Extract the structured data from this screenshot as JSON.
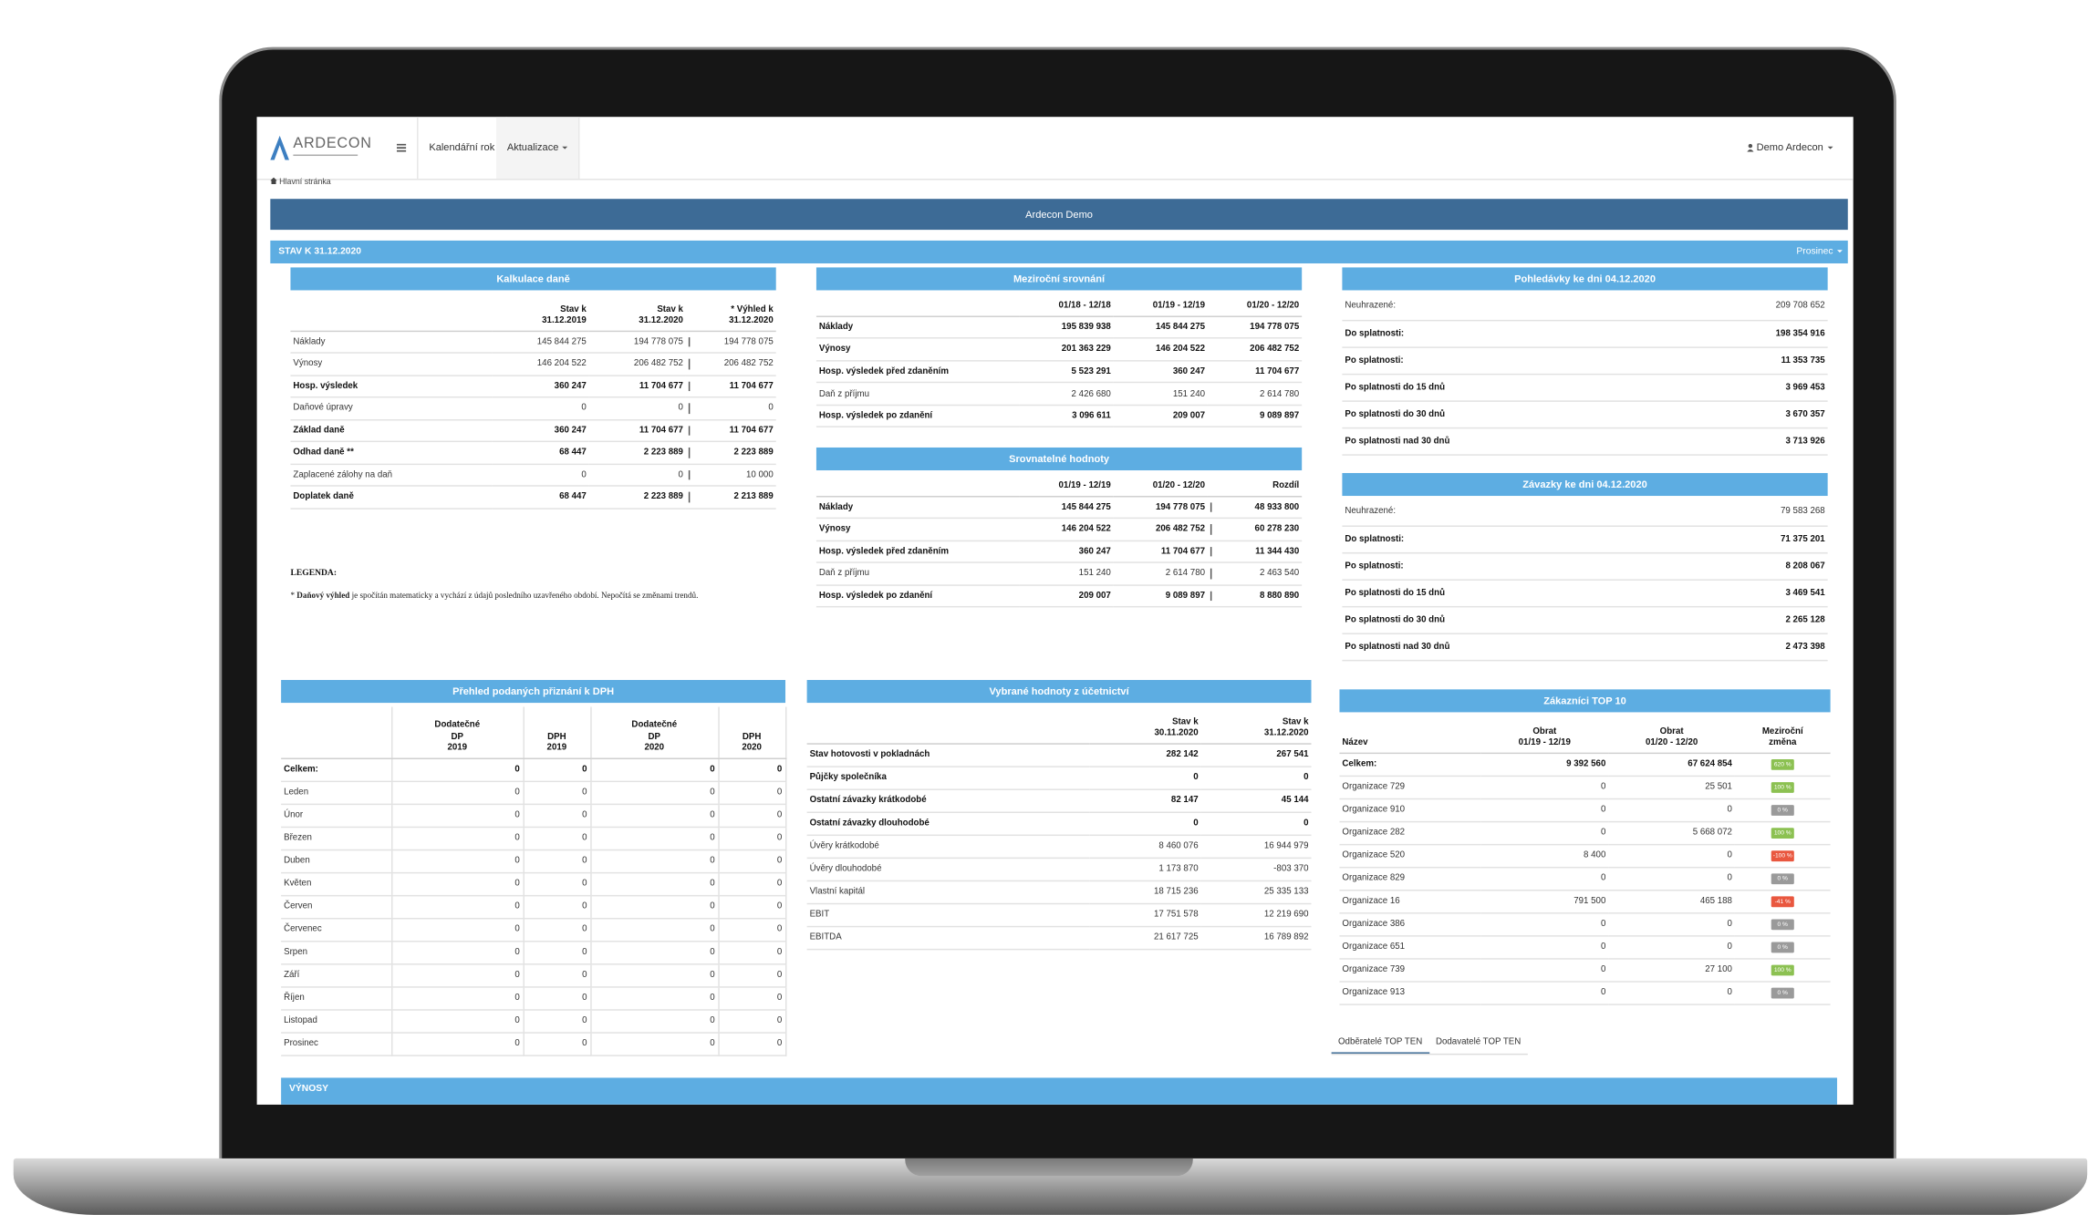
{
  "navbar": {
    "logo": "ARDECON",
    "items": [
      "Kalendářní rok",
      "Aktualizace"
    ],
    "user": "Demo Ardecon"
  },
  "breadcrumb": "Hlavní stránka",
  "banner": "Ardecon Demo",
  "section": {
    "title": "STAV K 31.12.2020",
    "month": "Prosinec"
  },
  "panels": {
    "kalkulace": {
      "title": "Kalkulace daně",
      "divider": true,
      "columns": [
        [],
        [
          "Stav k",
          "31.12.2019"
        ],
        [
          "Stav k",
          "31.12.2020"
        ],
        [
          "* Výhled k",
          "31.12.2020"
        ]
      ],
      "rows": [
        {
          "label": "Náklady",
          "values": [
            "145 844 275",
            "194 778 075",
            "194 778 075"
          ]
        },
        {
          "label": "Výnosy",
          "values": [
            "146 204 522",
            "206 482 752",
            "206 482 752"
          ]
        },
        {
          "label": "Hosp. výsledek",
          "values": [
            "360 247",
            "11 704 677",
            "11 704 677"
          ],
          "bold": true
        },
        {
          "label": "Daňové úpravy",
          "values": [
            "0",
            "0",
            "0"
          ],
          "sep": true
        },
        {
          "label": "Základ daně",
          "values": [
            "360 247",
            "11 704 677",
            "11 704 677"
          ],
          "bold": true,
          "sep": true
        },
        {
          "label": "Odhad daně **",
          "values": [
            "68 447",
            "2 223 889",
            "2 223 889"
          ],
          "bold": true,
          "sep": true
        },
        {
          "label": "Zaplacené zálohy na daň",
          "values": [
            "0",
            "0",
            "10 000"
          ],
          "sep": true
        },
        {
          "label": "Doplatek daně",
          "values": [
            "68 447",
            "2 223 889",
            "2 213 889"
          ],
          "bold": true
        }
      ]
    },
    "mezirocni": {
      "title": "Meziroční srovnání",
      "columns": [
        [],
        [
          "01/18 - 12/18"
        ],
        [
          "01/19 - 12/19"
        ],
        [
          "01/20 - 12/20"
        ]
      ],
      "rows": [
        {
          "label": "Náklady",
          "values": [
            "195 839 938",
            "145 844 275",
            "194 778 075"
          ],
          "bold": true
        },
        {
          "label": "Výnosy",
          "values": [
            "201 363 229",
            "146 204 522",
            "206 482 752"
          ],
          "bold": true
        },
        {
          "label": "Hosp. výsledek před zdaněním",
          "values": [
            "5 523 291",
            "360 247",
            "11 704 677"
          ],
          "bold": true
        },
        {
          "label": "Daň z příjmu",
          "values": [
            "2 426 680",
            "151 240",
            "2 614 780"
          ]
        },
        {
          "label": "Hosp. výsledek po zdanění",
          "values": [
            "3 096 611",
            "209 007",
            "9 089 897"
          ],
          "bold": true
        }
      ]
    },
    "srovnatelne": {
      "title": "Srovnatelné hodnoty",
      "divider": true,
      "columns": [
        [],
        [
          "01/19 - 12/19"
        ],
        [
          "01/20 - 12/20"
        ],
        [
          "Rozdíl"
        ]
      ],
      "rows": [
        {
          "label": "Náklady",
          "values": [
            "145 844 275",
            "194 778 075",
            "48 933 800"
          ],
          "bold": true
        },
        {
          "label": "Výnosy",
          "values": [
            "146 204 522",
            "206 482 752",
            "60 278 230"
          ],
          "bold": true
        },
        {
          "label": "Hosp. výsledek před zdaněním",
          "values": [
            "360 247",
            "11 704 677",
            "11 344 430"
          ],
          "bold": true
        },
        {
          "label": "Daň z příjmu",
          "values": [
            "151 240",
            "2 614 780",
            "2 463 540"
          ]
        },
        {
          "label": "Hosp. výsledek po zdanění",
          "values": [
            "209 007",
            "9 089 897",
            "8 880 890"
          ],
          "bold": true
        }
      ]
    },
    "pohledavky": {
      "title": "Pohledávky ke dni 04.12.2020",
      "rows": [
        {
          "label": "Neuhrazené:",
          "values": [
            "209 708 652"
          ]
        },
        {
          "label": "Do splatnosti:",
          "values": [
            "198 354 916"
          ],
          "bold": true
        },
        {
          "label": "Po splatnosti:",
          "values": [
            "11 353 735"
          ],
          "bold": true
        },
        {
          "label": "Po splatnosti do 15 dnů",
          "values": [
            "3 969 453"
          ],
          "bold": true
        },
        {
          "label": "Po splatnosti do 30 dnů",
          "values": [
            "3 670 357"
          ],
          "bold": true
        },
        {
          "label": "Po splatnosti nad 30 dnů",
          "values": [
            "3 713 926"
          ],
          "bold": true
        }
      ]
    },
    "zavazky": {
      "title": "Závazky ke dni 04.12.2020",
      "rows": [
        {
          "label": "Neuhrazené:",
          "values": [
            "79 583 268"
          ]
        },
        {
          "label": "Do splatnosti:",
          "values": [
            "71 375 201"
          ],
          "bold": true
        },
        {
          "label": "Po splatnosti:",
          "values": [
            "8 208 067"
          ],
          "bold": true
        },
        {
          "label": "Po splatnosti do 15 dnů",
          "values": [
            "3 469 541"
          ],
          "bold": true
        },
        {
          "label": "Po splatnosti do 30 dnů",
          "values": [
            "2 265 128"
          ],
          "bold": true
        },
        {
          "label": "Po splatnosti nad 30 dnů",
          "values": [
            "2 473 398"
          ],
          "bold": true
        }
      ]
    },
    "dph": {
      "title": "Přehled podaných přiznání k DPH",
      "columns": [
        [],
        [
          "Dodatečné",
          "DP",
          "2019"
        ],
        [
          "DPH",
          "2019"
        ],
        [
          "Dodatečné",
          "DP",
          "2020"
        ],
        [
          "DPH",
          "2020"
        ]
      ],
      "rows": [
        {
          "label": "Celkem:",
          "values": [
            "0",
            "0",
            "0",
            "0"
          ],
          "bold": true
        },
        {
          "label": "Leden",
          "values": [
            "0",
            "0",
            "0",
            "0"
          ]
        },
        {
          "label": "Únor",
          "values": [
            "0",
            "0",
            "0",
            "0"
          ]
        },
        {
          "label": "Březen",
          "values": [
            "0",
            "0",
            "0",
            "0"
          ]
        },
        {
          "label": "Duben",
          "values": [
            "0",
            "0",
            "0",
            "0"
          ]
        },
        {
          "label": "Květen",
          "values": [
            "0",
            "0",
            "0",
            "0"
          ]
        },
        {
          "label": "Červen",
          "values": [
            "0",
            "0",
            "0",
            "0"
          ]
        },
        {
          "label": "Červenec",
          "values": [
            "0",
            "0",
            "0",
            "0"
          ]
        },
        {
          "label": "Srpen",
          "values": [
            "0",
            "0",
            "0",
            "0"
          ]
        },
        {
          "label": "Září",
          "values": [
            "0",
            "0",
            "0",
            "0"
          ]
        },
        {
          "label": "Říjen",
          "values": [
            "0",
            "0",
            "0",
            "0"
          ]
        },
        {
          "label": "Listopad",
          "values": [
            "0",
            "0",
            "0",
            "0"
          ]
        },
        {
          "label": "Prosinec",
          "values": [
            "0",
            "0",
            "0",
            "0"
          ]
        }
      ]
    },
    "ucetnictvi": {
      "title": "Vybrané hodnoty z účetnictví",
      "columns": [
        [],
        [
          "Stav k",
          "30.11.2020"
        ],
        [
          "Stav k",
          "31.12.2020"
        ]
      ],
      "rows": [
        {
          "label": "Stav hotovosti v pokladnách",
          "values": [
            "282 142",
            "267 541"
          ],
          "bold": true
        },
        {
          "label": "Půjčky společníka",
          "values": [
            "0",
            "0"
          ],
          "bold": true
        },
        {
          "label": "Ostatní závazky krátkodobé",
          "values": [
            "82 147",
            "45 144"
          ],
          "bold": true
        },
        {
          "label": "Ostatní závazky dlouhodobé",
          "values": [
            "0",
            "0"
          ],
          "bold": true
        },
        {
          "label": "Úvěry krátkodobé",
          "values": [
            "8 460 076",
            "16 944 979"
          ]
        },
        {
          "label": "Úvěry dlouhodobé",
          "values": [
            "1 173 870",
            "-803 370"
          ]
        },
        {
          "label": "Vlastní kapitál",
          "values": [
            "18 715 236",
            "25 335 133"
          ]
        },
        {
          "label": "EBIT",
          "values": [
            "17 751 578",
            "12 219 690"
          ]
        },
        {
          "label": "EBITDA",
          "values": [
            "21 617 725",
            "16 789 892"
          ]
        }
      ]
    },
    "zakaznici": {
      "title": "Zákazníci TOP 10",
      "columns": [
        [
          "Název"
        ],
        [
          "Obrat",
          "01/19 - 12/19"
        ],
        [
          "Obrat",
          "01/20 - 12/20"
        ],
        [
          "Meziroční",
          "změna"
        ]
      ],
      "rows": [
        {
          "label": "Celkem:",
          "values": [
            "9 392 560",
            "67 624 854"
          ],
          "change": "620 %",
          "badge": "green",
          "bold": true
        },
        {
          "label": "Organizace 729",
          "values": [
            "0",
            "25 501"
          ],
          "change": "100 %",
          "badge": "green"
        },
        {
          "label": "Organizace 910",
          "values": [
            "0",
            "0"
          ],
          "change": "0 %",
          "badge": "grey"
        },
        {
          "label": "Organizace 282",
          "values": [
            "0",
            "5 668 072"
          ],
          "change": "100 %",
          "badge": "green"
        },
        {
          "label": "Organizace 520",
          "values": [
            "8 400",
            "0"
          ],
          "change": "-100 %",
          "badge": "red"
        },
        {
          "label": "Organizace 829",
          "values": [
            "0",
            "0"
          ],
          "change": "0 %",
          "badge": "grey"
        },
        {
          "label": "Organizace 16",
          "values": [
            "791 500",
            "465 188"
          ],
          "change": "-41 %",
          "badge": "red"
        },
        {
          "label": "Organizace 386",
          "values": [
            "0",
            "0"
          ],
          "change": "0 %",
          "badge": "grey"
        },
        {
          "label": "Organizace 651",
          "values": [
            "0",
            "0"
          ],
          "change": "0 %",
          "badge": "grey"
        },
        {
          "label": "Organizace 739",
          "values": [
            "0",
            "27 100"
          ],
          "change": "100 %",
          "badge": "green"
        },
        {
          "label": "Organizace 913",
          "values": [
            "0",
            "0"
          ],
          "change": "0 %",
          "badge": "grey"
        }
      ]
    }
  },
  "legend": {
    "title": "LEGENDA:",
    "prefix": "*",
    "term": "Daňový výhled",
    "text": "je spočítán matematicky a vychází z údajů posledního uzavřeného období. Nepočítá se změnami trendů."
  },
  "tabs": [
    "Odběratelé TOP TEN",
    "Dodavatelé TOP TEN"
  ],
  "footer_section": "VÝNOSY"
}
